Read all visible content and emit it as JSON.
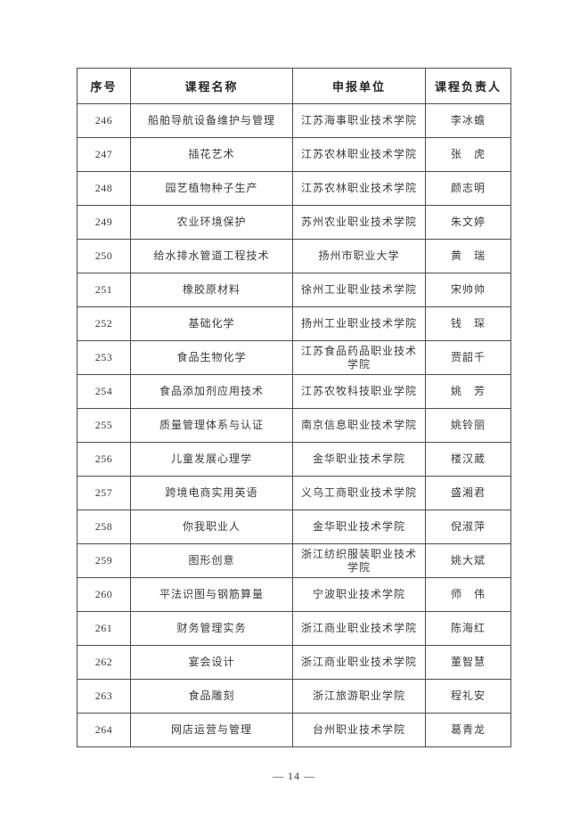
{
  "page": {
    "footer": "— 14 —"
  },
  "table": {
    "headers": [
      "序号",
      "课程名称",
      "申报单位",
      "课程负责人"
    ],
    "rows": [
      [
        "246",
        "船舶导航设备维护与管理",
        "江苏海事职业技术学院",
        "李冰蟾"
      ],
      [
        "247",
        "插花艺术",
        "江苏农林职业技术学院",
        "张　虎"
      ],
      [
        "248",
        "园艺植物种子生产",
        "江苏农林职业技术学院",
        "颜志明"
      ],
      [
        "249",
        "农业环境保护",
        "苏州农业职业技术学院",
        "朱文婷"
      ],
      [
        "250",
        "给水排水管道工程技术",
        "扬州市职业大学",
        "黄　瑞"
      ],
      [
        "251",
        "橡胶原材料",
        "徐州工业职业技术学院",
        "宋帅帅"
      ],
      [
        "252",
        "基础化学",
        "扬州工业职业技术学院",
        "钱　琛"
      ],
      [
        "253",
        "食品生物化学",
        "江苏食品药品职业技术学院",
        "贾韶千"
      ],
      [
        "254",
        "食品添加剂应用技术",
        "江苏农牧科技职业学院",
        "姚　芳"
      ],
      [
        "255",
        "质量管理体系与认证",
        "南京信息职业技术学院",
        "姚铃丽"
      ],
      [
        "256",
        "儿童发展心理学",
        "金华职业技术学院",
        "楼汉葳"
      ],
      [
        "257",
        "跨境电商实用英语",
        "义乌工商职业技术学院",
        "盛湘君"
      ],
      [
        "258",
        "你我职业人",
        "金华职业技术学院",
        "倪淑萍"
      ],
      [
        "259",
        "图形创意",
        "浙江纺织服装职业技术学院",
        "姚大斌"
      ],
      [
        "260",
        "平法识图与钢筋算量",
        "宁波职业技术学院",
        "师　伟"
      ],
      [
        "261",
        "财务管理实务",
        "浙江商业职业技术学院",
        "陈海红"
      ],
      [
        "262",
        "宴会设计",
        "浙江商业职业技术学院",
        "董智慧"
      ],
      [
        "263",
        "食品雕刻",
        "浙江旅游职业学院",
        "程礼安"
      ],
      [
        "264",
        "网店运营与管理",
        "台州职业技术学院",
        "葛青龙"
      ]
    ]
  }
}
